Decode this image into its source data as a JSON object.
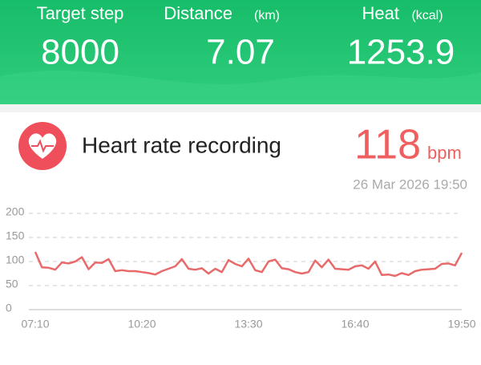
{
  "stats": [
    {
      "label": "Target step",
      "value": 8000
    },
    {
      "label": "Distance",
      "unit": "(km)",
      "value": 7.07
    },
    {
      "label": "Heat",
      "unit": "(kcal)",
      "value": 1253.9
    }
  ],
  "heart": {
    "title": "Heart rate recording",
    "value": 118,
    "unit": "bpm",
    "time": "26 Mar 2026 19:50"
  },
  "chart_data": {
    "type": "line",
    "categories": [
      "07:10",
      null,
      null,
      null,
      null,
      null,
      null,
      null,
      null,
      null,
      null,
      null,
      null,
      null,
      null,
      null,
      "10:20",
      null,
      null,
      null,
      null,
      null,
      null,
      null,
      null,
      null,
      null,
      null,
      null,
      null,
      null,
      null,
      "13:30",
      null,
      null,
      null,
      null,
      null,
      null,
      null,
      null,
      null,
      null,
      null,
      null,
      null,
      null,
      null,
      "16:40",
      null,
      null,
      null,
      null,
      null,
      null,
      null,
      null,
      null,
      null,
      null,
      null,
      null,
      null,
      null,
      "19:50"
    ],
    "values": [
      120,
      88,
      87,
      83,
      98,
      96,
      100,
      109,
      84,
      98,
      97,
      105,
      80,
      82,
      80,
      80,
      78,
      76,
      73,
      80,
      85,
      90,
      105,
      85,
      83,
      86,
      75,
      85,
      78,
      103,
      95,
      90,
      106,
      82,
      78,
      100,
      104,
      86,
      84,
      78,
      75,
      78,
      102,
      88,
      104,
      85,
      84,
      83,
      90,
      92,
      85,
      100,
      72,
      73,
      70,
      76,
      72,
      80,
      83,
      84,
      85,
      95,
      96,
      92,
      118
    ],
    "color": "#e86a6a",
    "ylim": [
      0,
      200
    ],
    "yticks": [
      0,
      50,
      100,
      150,
      200
    ],
    "grid": true
  }
}
